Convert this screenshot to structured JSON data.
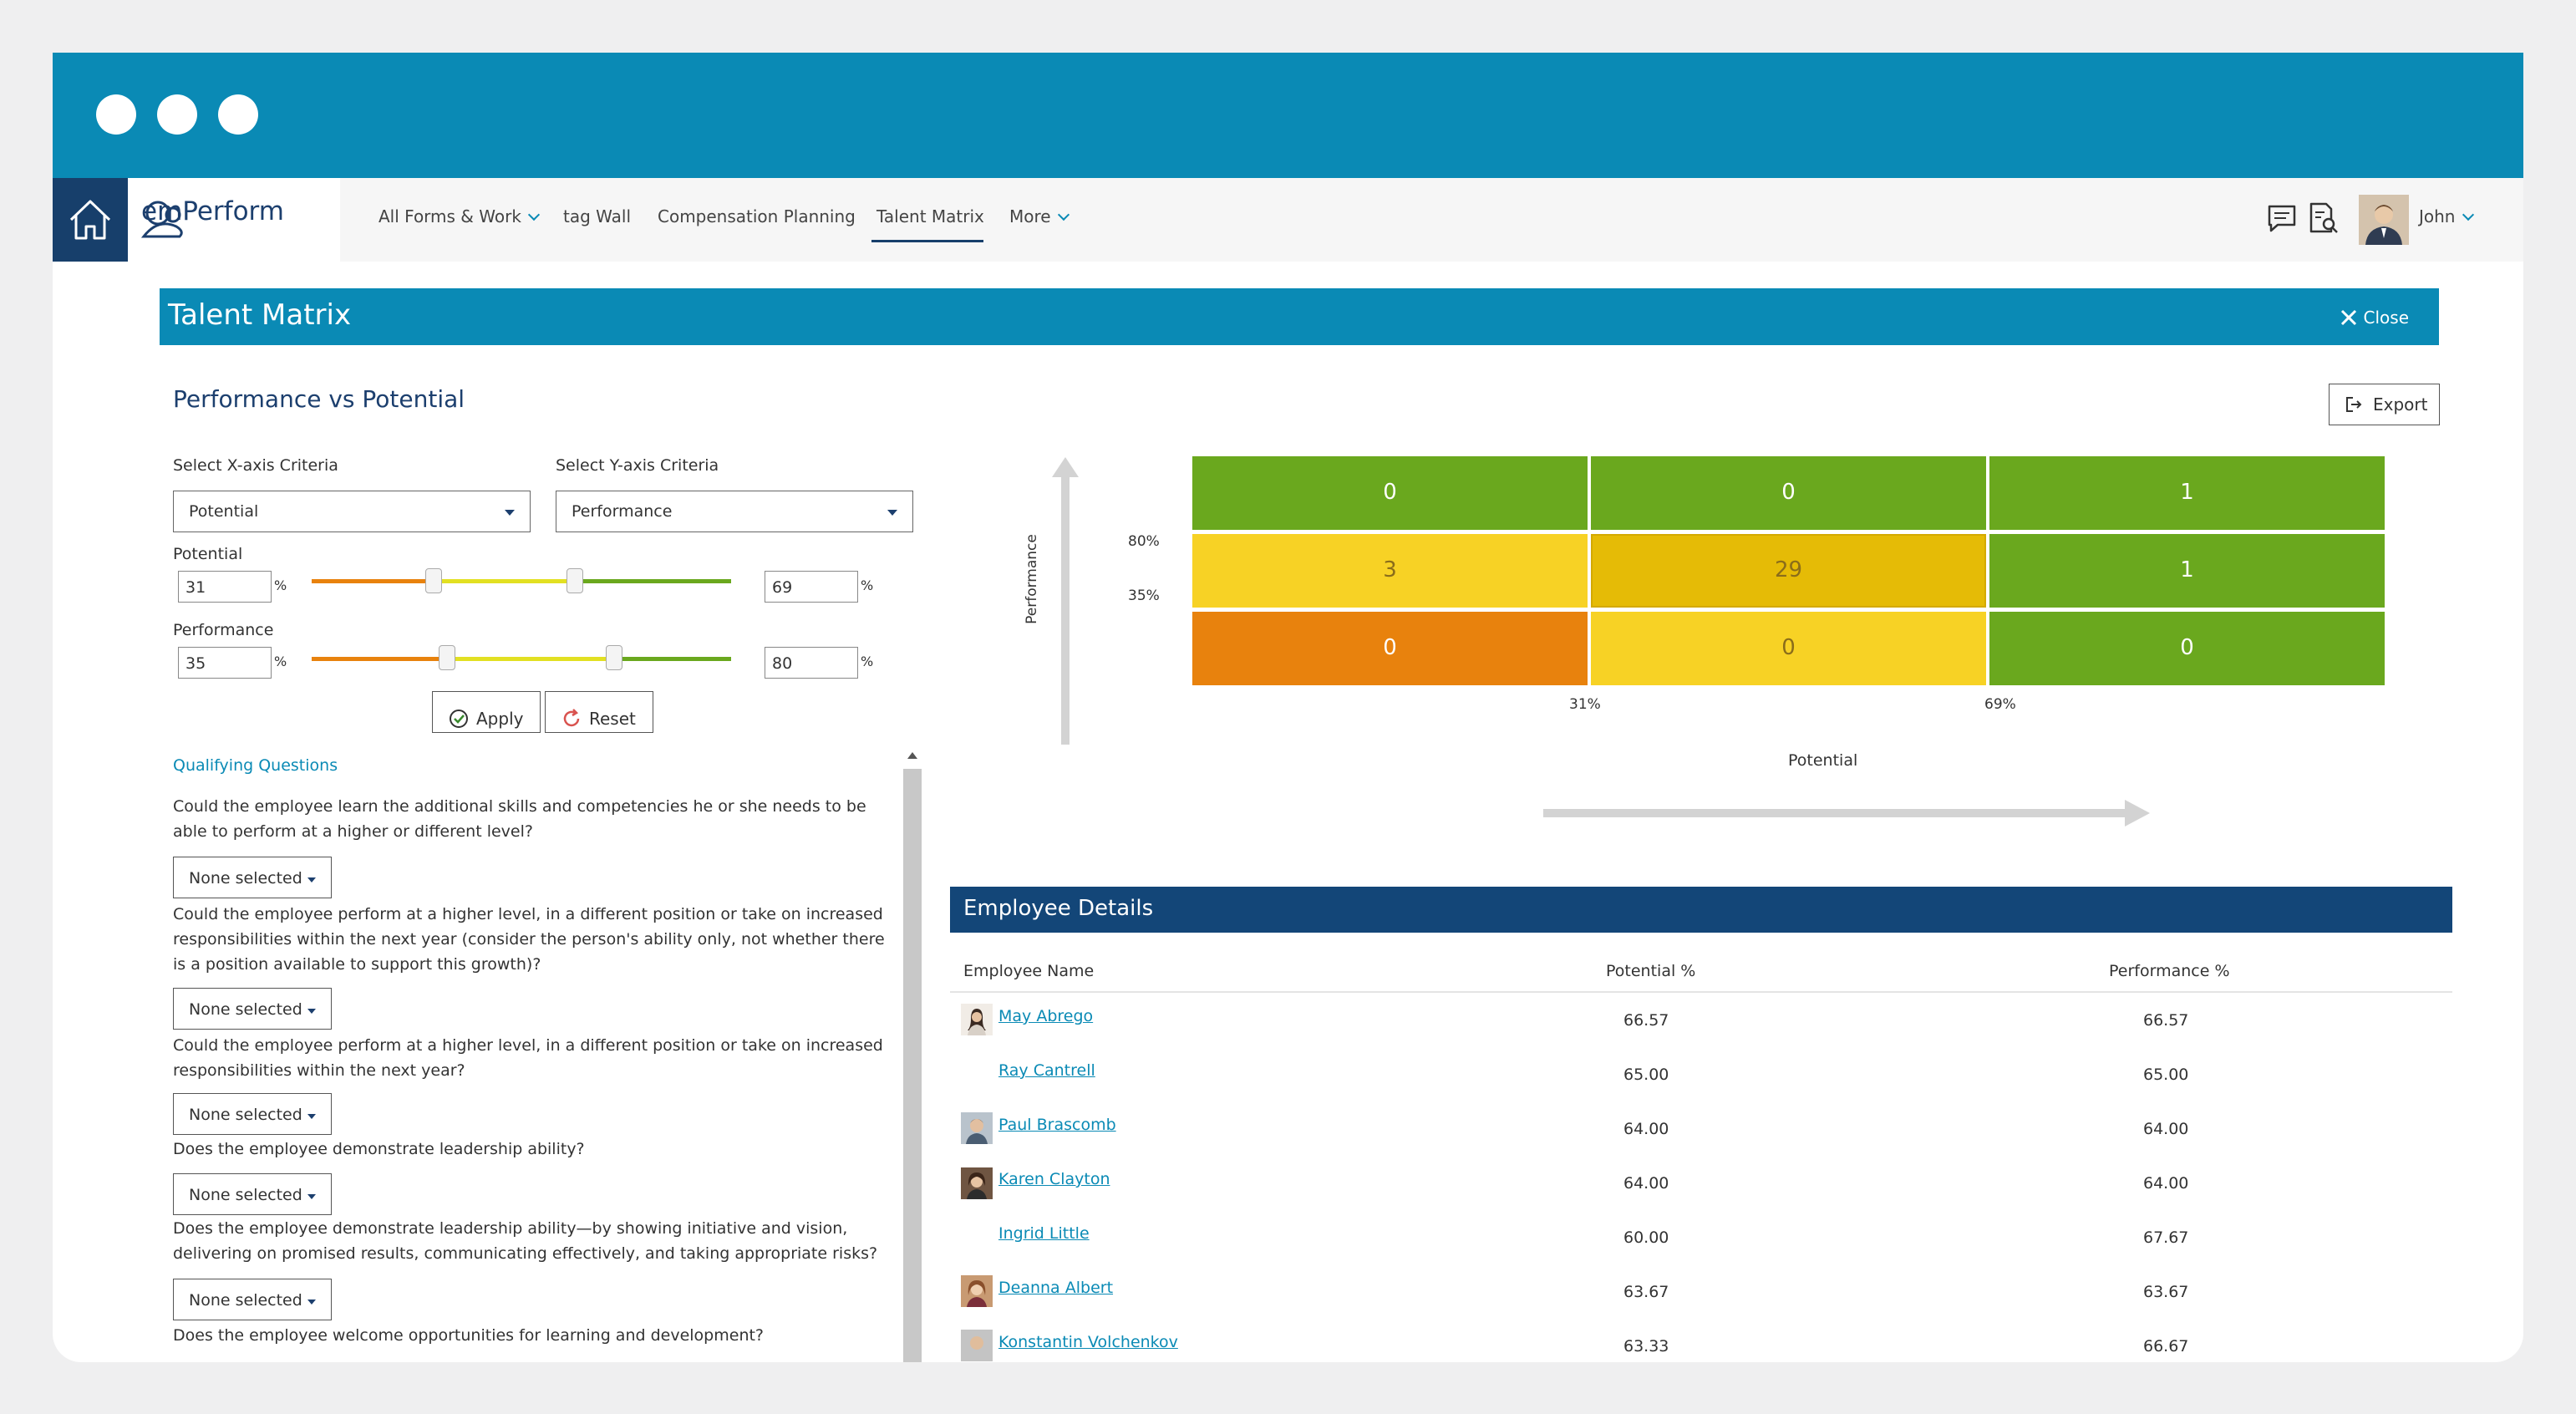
{
  "nav": {
    "logo": "emPerform",
    "items": [
      {
        "label": "All Forms & Work",
        "dropdown": true
      },
      {
        "label": "tag Wall",
        "dropdown": false
      },
      {
        "label": "Compensation Planning",
        "dropdown": false
      },
      {
        "label": "Talent Matrix",
        "dropdown": false,
        "active": true
      },
      {
        "label": "More",
        "dropdown": true
      }
    ],
    "user": "John",
    "icons": [
      "home-icon",
      "chat-icon",
      "document-search-icon",
      "chevron-down-icon"
    ]
  },
  "panel": {
    "title": "Talent Matrix",
    "close_label": "Close",
    "section_title": "Performance vs Potential",
    "export_label": "Export"
  },
  "criteria": {
    "x_label": "Select X-axis Criteria",
    "x_value": "Potential",
    "y_label": "Select Y-axis Criteria",
    "y_value": "Performance",
    "potential_label": "Potential",
    "potential_low": "31",
    "potential_high": "69",
    "performance_label": "Performance",
    "performance_low": "35",
    "performance_high": "80",
    "pct": "%",
    "apply_label": "Apply",
    "reset_label": "Reset"
  },
  "qualifying": {
    "title": "Qualifying Questions",
    "questions": [
      "Could the employee learn the additional skills and competencies he or she needs to be able to perform at a higher or different level?",
      "Could the employee perform at a higher level, in a different position or take on increased responsibilities within the next year (consider the person's ability only, not whether there is a position available to support this growth)?",
      "Could the employee perform at a higher level, in a different position or take on increased responsibilities within the next year?",
      "Does the employee demonstrate leadership ability?",
      "Does the employee demonstrate leadership ability—by showing initiative and vision, delivering on promised results, communicating effectively, and taking appropriate risks?",
      "Does the employee welcome opportunities for learning and development?"
    ],
    "dropdown_value": "None selected"
  },
  "matrix": {
    "y_axis_label": "Performance",
    "x_axis_label": "Potential",
    "y_ticks": [
      "80%",
      "35%"
    ],
    "x_ticks": [
      "31%",
      "69%"
    ],
    "rows": [
      [
        {
          "value": "0",
          "color": "#6aa81e"
        },
        {
          "value": "0",
          "color": "#6aa81e"
        },
        {
          "value": "1",
          "color": "#6aa81e"
        }
      ],
      [
        {
          "value": "3",
          "color": "#f7d225"
        },
        {
          "value": "29",
          "color": "#e5bb06"
        },
        {
          "value": "1",
          "color": "#6aa81e"
        }
      ],
      [
        {
          "value": "0",
          "color": "#e8820d"
        },
        {
          "value": "0",
          "color": "#f7d225"
        },
        {
          "value": "0",
          "color": "#6aa81e"
        }
      ]
    ]
  },
  "employees": {
    "title": "Employee Details",
    "headers": {
      "name": "Employee Name",
      "potential": "Potential %",
      "performance": "Performance %"
    },
    "rows": [
      {
        "name": "May Abrego",
        "potential": "66.57",
        "performance": "66.57",
        "avatar": true
      },
      {
        "name": "Ray Cantrell",
        "potential": "65.00",
        "performance": "65.00",
        "avatar": false
      },
      {
        "name": "Paul Brascomb",
        "potential": "64.00",
        "performance": "64.00",
        "avatar": true
      },
      {
        "name": "Karen Clayton",
        "potential": "64.00",
        "performance": "64.00",
        "avatar": true
      },
      {
        "name": "Ingrid Little",
        "potential": "60.00",
        "performance": "67.67",
        "avatar": false
      },
      {
        "name": "Deanna Albert",
        "potential": "63.67",
        "performance": "63.67",
        "avatar": true
      },
      {
        "name": "Konstantin Volchenkov",
        "potential": "63.33",
        "performance": "66.67",
        "avatar": true
      }
    ]
  }
}
